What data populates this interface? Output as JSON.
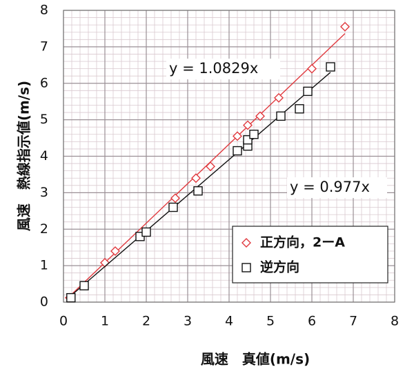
{
  "chart_data": {
    "type": "scatter",
    "xlabel": "風速　真値(m/s)",
    "ylabel": "風速　熱線指示値(m/s)",
    "xlim": [
      0,
      8
    ],
    "ylim": [
      0,
      8
    ],
    "xticks": [
      0,
      1,
      2,
      3,
      4,
      5,
      6,
      7,
      8
    ],
    "yticks": [
      0,
      1,
      2,
      3,
      4,
      5,
      6,
      7,
      8
    ],
    "grid": true,
    "legend": "lower right",
    "series": [
      {
        "name": "正方向，2ーA",
        "color": "#e0393e",
        "marker": "diamond",
        "x": [
          0.15,
          1.0,
          1.25,
          2.7,
          3.2,
          3.55,
          4.2,
          4.45,
          4.75,
          5.2,
          6.0,
          6.8
        ],
        "values": [
          0.12,
          1.08,
          1.4,
          2.85,
          3.4,
          3.72,
          4.55,
          4.85,
          5.1,
          5.6,
          6.4,
          7.55
        ],
        "trendline": {
          "slope": 1.0829,
          "label": "y = 1.0829x"
        }
      },
      {
        "name": "逆方向",
        "color": "#111111",
        "marker": "square",
        "x": [
          0.18,
          0.5,
          1.85,
          2.0,
          2.65,
          3.25,
          4.2,
          4.45,
          4.45,
          4.6,
          5.25,
          5.7,
          5.9,
          6.45
        ],
        "values": [
          0.12,
          0.45,
          1.8,
          1.92,
          2.6,
          3.05,
          4.15,
          4.28,
          4.45,
          4.6,
          5.1,
          5.3,
          5.78,
          6.45
        ],
        "trendline": {
          "slope": 0.977,
          "label": "y = 0.977x"
        }
      }
    ]
  }
}
